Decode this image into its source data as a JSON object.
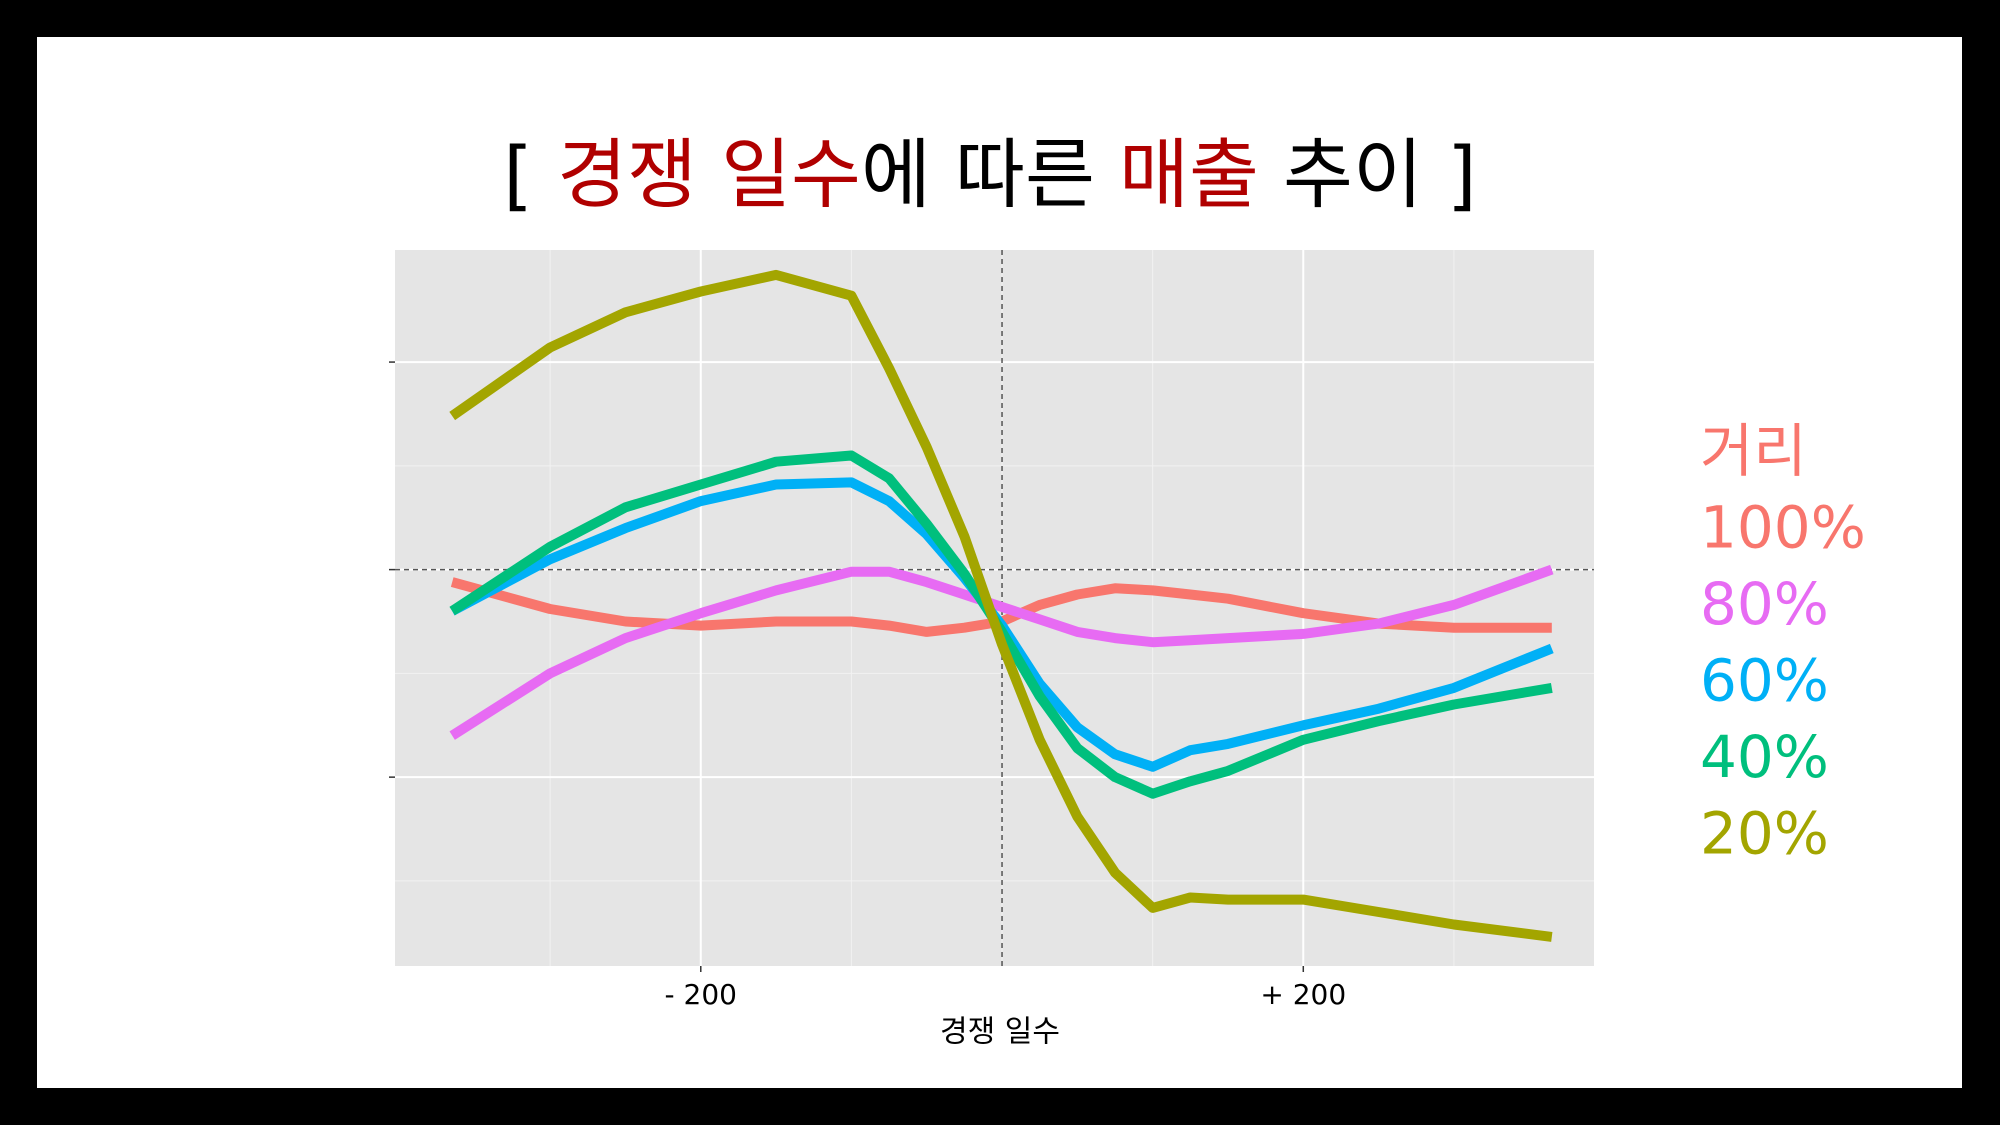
{
  "chart_data": {
    "type": "line",
    "title": [
      {
        "text": "[ ",
        "color": "#000000"
      },
      {
        "text": "경쟁 일수",
        "color": "#b00000"
      },
      {
        "text": "에 따른 ",
        "color": "#000000"
      },
      {
        "text": "매출",
        "color": "#b00000"
      },
      {
        "text": " 추이 ]",
        "color": "#000000"
      }
    ],
    "x_label": "경쟁 일수",
    "legend_title": "거리",
    "legend_title_color": "#F8766D",
    "legend_position": "right",
    "x": [
      -365,
      -300,
      -250,
      -200,
      -150,
      -100,
      -75,
      -50,
      -25,
      0,
      25,
      50,
      75,
      100,
      125,
      150,
      200,
      250,
      300,
      365
    ],
    "series": [
      {
        "name": "100%",
        "color": "#F8766D",
        "values": [
          -0.06,
          -0.19,
          -0.25,
          -0.27,
          -0.25,
          -0.25,
          -0.27,
          -0.3,
          -0.28,
          -0.25,
          -0.17,
          -0.12,
          -0.09,
          -0.1,
          -0.12,
          -0.14,
          -0.21,
          -0.26,
          -0.28,
          -0.28
        ]
      },
      {
        "name": "80%",
        "color": "#E76BF3",
        "values": [
          -0.8,
          -0.5,
          -0.33,
          -0.21,
          -0.1,
          -0.01,
          -0.01,
          -0.06,
          -0.12,
          -0.18,
          -0.24,
          -0.3,
          -0.33,
          -0.35,
          -0.34,
          -0.33,
          -0.31,
          -0.26,
          -0.17,
          0.0
        ]
      },
      {
        "name": "60%",
        "color": "#00B0F6",
        "values": [
          -0.2,
          0.05,
          0.2,
          0.33,
          0.41,
          0.42,
          0.33,
          0.17,
          -0.04,
          -0.27,
          -0.55,
          -0.76,
          -0.89,
          -0.95,
          -0.87,
          -0.84,
          -0.75,
          -0.67,
          -0.57,
          -0.38
        ]
      },
      {
        "name": "40%",
        "color": "#00BF7D",
        "values": [
          -0.2,
          0.11,
          0.3,
          0.41,
          0.52,
          0.55,
          0.44,
          0.22,
          -0.02,
          -0.3,
          -0.61,
          -0.86,
          -1.0,
          -1.08,
          -1.02,
          -0.97,
          -0.82,
          -0.73,
          -0.65,
          -0.57
        ]
      },
      {
        "name": "20%",
        "color": "#A3A500",
        "values": [
          0.74,
          1.07,
          1.24,
          1.34,
          1.42,
          1.32,
          0.97,
          0.59,
          0.16,
          -0.36,
          -0.82,
          -1.19,
          -1.46,
          -1.63,
          -1.58,
          -1.59,
          -1.59,
          -1.65,
          -1.71,
          -1.77
        ]
      }
    ],
    "xlim": [
      -403,
      393
    ],
    "xticks": [
      {
        "value": -200,
        "label": "- 200"
      },
      {
        "value": 200,
        "label": "+ 200"
      }
    ],
    "x_minor_grid": [
      -300,
      -100,
      0,
      100,
      300
    ],
    "ylim": [
      -1.91,
      1.54
    ],
    "yticks": [
      -1,
      0,
      1
    ],
    "y_minor_grid": [
      -1.5,
      -0.5,
      0.5
    ],
    "reference_lines": {
      "x": 0,
      "y": 0
    },
    "grid": true
  }
}
